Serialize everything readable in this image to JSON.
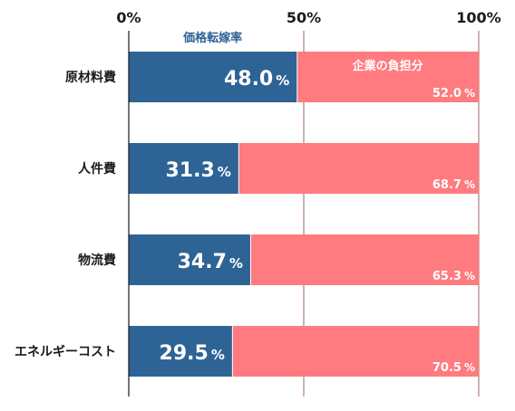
{
  "chart_data": {
    "type": "bar",
    "orientation": "horizontal",
    "stacked": true,
    "x_ticks": [
      "0%",
      "50%",
      "100%"
    ],
    "xlim": [
      0,
      100
    ],
    "categories": [
      "原材料費",
      "人件費",
      "物流費",
      "エネルギーコスト"
    ],
    "series": [
      {
        "name": "価格転嫁率",
        "color": "#2e6396",
        "values": [
          48.0,
          31.3,
          34.7,
          29.5
        ],
        "labels": [
          "48.0",
          "31.3",
          "34.7",
          "29.5"
        ]
      },
      {
        "name": "企業の負担分",
        "color": "#ff7b7f",
        "values": [
          52.0,
          68.7,
          65.3,
          70.5
        ],
        "labels": [
          "52.0",
          "68.7",
          "65.3",
          "70.5"
        ]
      }
    ],
    "unit": "%",
    "grid": true,
    "gridline_color": "#9a6a60",
    "legend": "inline-top"
  }
}
